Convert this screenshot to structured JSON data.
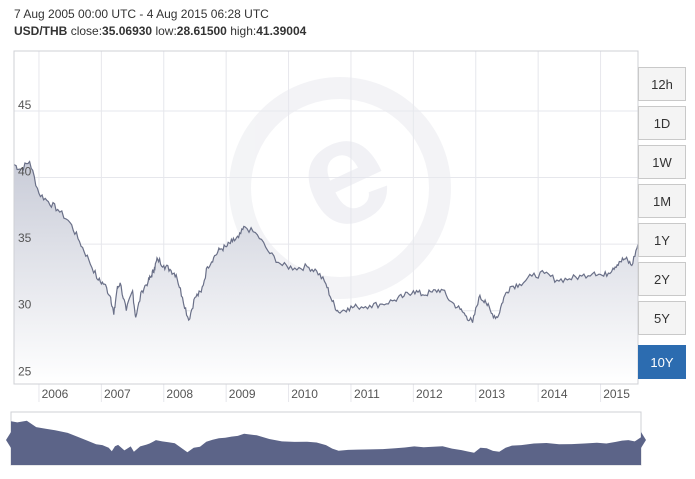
{
  "header": {
    "range_text": "7 Aug 2005 00:00 UTC - 4 Aug 2015 06:28 UTC",
    "pair": "USD/THB",
    "close_label": "close:",
    "close_value": "35.06930",
    "low_label": "low:",
    "low_value": "28.61500",
    "high_label": "high:",
    "high_value": "41.39004"
  },
  "range_buttons": [
    {
      "label": "12h",
      "active": false
    },
    {
      "label": "1D",
      "active": false
    },
    {
      "label": "1W",
      "active": false
    },
    {
      "label": "1M",
      "active": false
    },
    {
      "label": "1Y",
      "active": false
    },
    {
      "label": "2Y",
      "active": false
    },
    {
      "label": "5Y",
      "active": false
    },
    {
      "label": "10Y",
      "active": true
    }
  ],
  "colors": {
    "line": "#6a7088",
    "area_top": "#c9ccd8",
    "area_bottom": "#ffffff",
    "nav_fill": "#5c6488",
    "active_button": "#2c6cb0"
  },
  "chart_data": {
    "type": "area",
    "title": "",
    "xlabel": "",
    "ylabel": "",
    "ylim": [
      24.5,
      49.5
    ],
    "xlim": [
      2005.6,
      2015.6
    ],
    "y_ticks": [
      25,
      30,
      35,
      40,
      45
    ],
    "x_ticks": [
      "2006",
      "2007",
      "2008",
      "2009",
      "2010",
      "2011",
      "2012",
      "2013",
      "2014",
      "2015"
    ],
    "grid": true,
    "series": [
      {
        "x": [
          2005.6,
          2005.7,
          2005.85,
          2006.0,
          2006.15,
          2006.3,
          2006.5,
          2006.65,
          2006.8,
          2006.95,
          2007.05,
          2007.15,
          2007.2,
          2007.25,
          2007.3,
          2007.4,
          2007.5,
          2007.55,
          2007.65,
          2007.75,
          2007.8,
          2007.85,
          2007.9,
          2008.0,
          2008.1,
          2008.2,
          2008.3,
          2008.4,
          2008.5,
          2008.6,
          2008.7,
          2008.8,
          2008.9,
          2009.0,
          2009.1,
          2009.2,
          2009.3,
          2009.5,
          2009.7,
          2009.9,
          2010.1,
          2010.3,
          2010.45,
          2010.6,
          2010.7,
          2010.8,
          2010.95,
          2011.1,
          2011.3,
          2011.5,
          2011.7,
          2011.85,
          2012.0,
          2012.15,
          2012.3,
          2012.45,
          2012.6,
          2012.75,
          2012.85,
          2012.95,
          2013.05,
          2013.15,
          2013.25,
          2013.35,
          2013.45,
          2013.55,
          2013.7,
          2013.9,
          2014.1,
          2014.3,
          2014.5,
          2014.7,
          2014.9,
          2015.05,
          2015.2,
          2015.3,
          2015.4,
          2015.5,
          2015.6
        ],
        "values": [
          41.0,
          40.6,
          41.2,
          38.8,
          38.2,
          37.6,
          36.6,
          35.2,
          33.8,
          32.3,
          32.0,
          31.0,
          29.7,
          31.6,
          32.1,
          30.0,
          31.5,
          29.5,
          31.5,
          32.2,
          32.6,
          33.2,
          33.9,
          33.4,
          33.1,
          32.7,
          31.0,
          29.3,
          31.0,
          31.4,
          33.3,
          34.0,
          34.6,
          34.8,
          35.2,
          35.5,
          36.3,
          35.7,
          34.3,
          33.4,
          33.2,
          33.3,
          33.0,
          32.0,
          30.7,
          29.9,
          30.2,
          30.3,
          30.4,
          30.5,
          30.8,
          31.1,
          31.5,
          31.2,
          31.4,
          31.6,
          30.7,
          30.1,
          29.6,
          29.1,
          31.0,
          30.8,
          29.8,
          29.5,
          31.0,
          31.8,
          32.0,
          32.6,
          32.8,
          32.3,
          32.4,
          32.6,
          32.9,
          32.6,
          33.2,
          33.7,
          33.9,
          33.4,
          35.0
        ]
      }
    ]
  }
}
